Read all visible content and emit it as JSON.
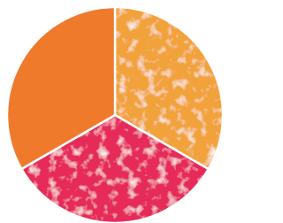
{
  "segments": [
    {
      "color": "#f2a23a",
      "texture": true
    },
    {
      "color": "#e62a5a",
      "texture": true
    },
    {
      "color": "#ef7a2c",
      "texture": false
    }
  ]
}
